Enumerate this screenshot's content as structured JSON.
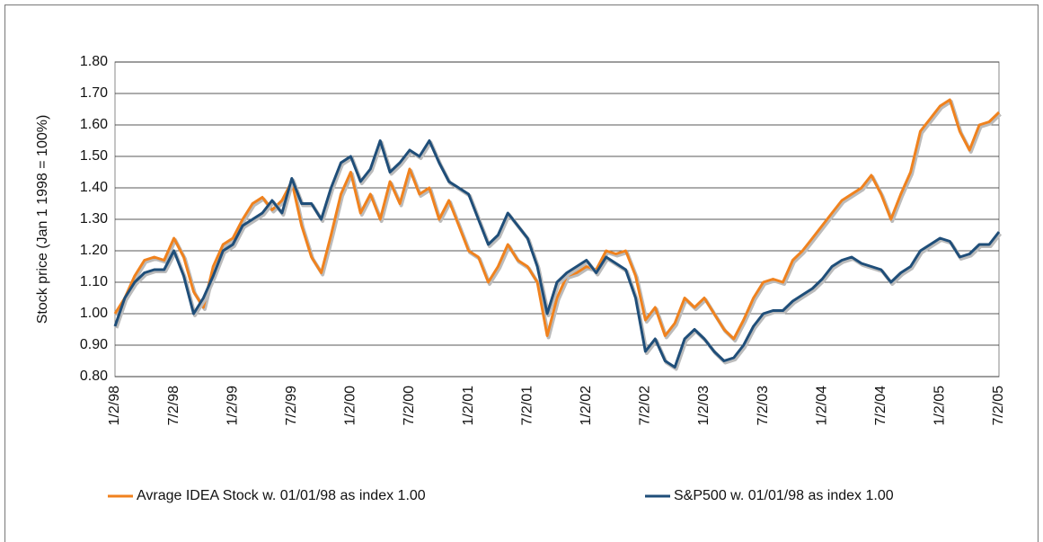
{
  "chart_data": {
    "type": "line",
    "y_label": "Stock price (Jan 1 1998 = 100%)",
    "categories": [
      "1/2/98",
      null,
      null,
      null,
      null,
      null,
      "7/2/98",
      null,
      null,
      null,
      null,
      null,
      "1/2/99",
      null,
      null,
      null,
      null,
      null,
      "7/2/99",
      null,
      null,
      null,
      null,
      null,
      "1/2/00",
      null,
      null,
      null,
      null,
      null,
      "7/2/00",
      null,
      null,
      null,
      null,
      null,
      "1/2/01",
      null,
      null,
      null,
      null,
      null,
      "7/2/01",
      null,
      null,
      null,
      null,
      null,
      "1/2/02",
      null,
      null,
      null,
      null,
      null,
      "7/2/02",
      null,
      null,
      null,
      null,
      null,
      "1/2/03",
      null,
      null,
      null,
      null,
      null,
      "7/2/03",
      null,
      null,
      null,
      null,
      null,
      "1/2/04",
      null,
      null,
      null,
      null,
      null,
      "7/2/04",
      null,
      null,
      null,
      null,
      null,
      "1/2/05",
      null,
      null,
      null,
      null,
      null,
      "7/2/05"
    ],
    "series": [
      {
        "name": "Avrage IDEA Stock w. 01/01/98 as index 1.00",
        "color": "#f0821e",
        "values": [
          1.0,
          1.05,
          1.12,
          1.17,
          1.18,
          1.17,
          1.24,
          1.18,
          1.07,
          1.02,
          1.15,
          1.22,
          1.24,
          1.3,
          1.35,
          1.37,
          1.33,
          1.36,
          1.42,
          1.28,
          1.18,
          1.13,
          1.25,
          1.38,
          1.45,
          1.32,
          1.38,
          1.3,
          1.42,
          1.35,
          1.46,
          1.38,
          1.4,
          1.3,
          1.36,
          1.28,
          1.2,
          1.18,
          1.1,
          1.15,
          1.22,
          1.17,
          1.15,
          1.1,
          0.93,
          1.05,
          1.12,
          1.13,
          1.15,
          1.14,
          1.2,
          1.19,
          1.2,
          1.12,
          0.98,
          1.02,
          0.93,
          0.97,
          1.05,
          1.02,
          1.05,
          1.0,
          0.95,
          0.92,
          0.98,
          1.05,
          1.1,
          1.11,
          1.1,
          1.17,
          1.2,
          1.24,
          1.28,
          1.32,
          1.36,
          1.38,
          1.4,
          1.44,
          1.38,
          1.3,
          1.38,
          1.45,
          1.58,
          1.62,
          1.66,
          1.68,
          1.58,
          1.52,
          1.6,
          1.61,
          1.64
        ]
      },
      {
        "name": "S&P500 w. 01/01/98 as index 1.00",
        "color": "#1f4e79",
        "values": [
          0.96,
          1.05,
          1.1,
          1.13,
          1.14,
          1.14,
          1.2,
          1.12,
          1.0,
          1.05,
          1.12,
          1.2,
          1.22,
          1.28,
          1.3,
          1.32,
          1.36,
          1.32,
          1.43,
          1.35,
          1.35,
          1.3,
          1.4,
          1.48,
          1.5,
          1.42,
          1.46,
          1.55,
          1.45,
          1.48,
          1.52,
          1.5,
          1.55,
          1.48,
          1.42,
          1.4,
          1.38,
          1.3,
          1.22,
          1.25,
          1.32,
          1.28,
          1.24,
          1.15,
          1.0,
          1.1,
          1.13,
          1.15,
          1.17,
          1.13,
          1.18,
          1.16,
          1.14,
          1.05,
          0.88,
          0.92,
          0.85,
          0.83,
          0.92,
          0.95,
          0.92,
          0.88,
          0.85,
          0.86,
          0.9,
          0.96,
          1.0,
          1.01,
          1.01,
          1.04,
          1.06,
          1.08,
          1.11,
          1.15,
          1.17,
          1.18,
          1.16,
          1.15,
          1.14,
          1.1,
          1.13,
          1.15,
          1.2,
          1.22,
          1.24,
          1.23,
          1.18,
          1.19,
          1.22,
          1.22,
          1.26
        ]
      }
    ],
    "ylim": [
      0.8,
      1.8
    ],
    "yticks": [
      {
        "value": 0.8,
        "label": "0.80"
      },
      {
        "value": 0.9,
        "label": "0.90"
      },
      {
        "value": 1.0,
        "label": "1.00"
      },
      {
        "value": 1.1,
        "label": "1.10"
      },
      {
        "value": 1.2,
        "label": "1.20"
      },
      {
        "value": 1.3,
        "label": "1.30"
      },
      {
        "value": 1.4,
        "label": "1.40"
      },
      {
        "value": 1.5,
        "label": "1.50"
      },
      {
        "value": 1.6,
        "label": "1.60"
      },
      {
        "value": 1.7,
        "label": "1.70"
      },
      {
        "value": 1.8,
        "label": "1.80"
      }
    ],
    "grid": true,
    "legend": "bottom"
  }
}
